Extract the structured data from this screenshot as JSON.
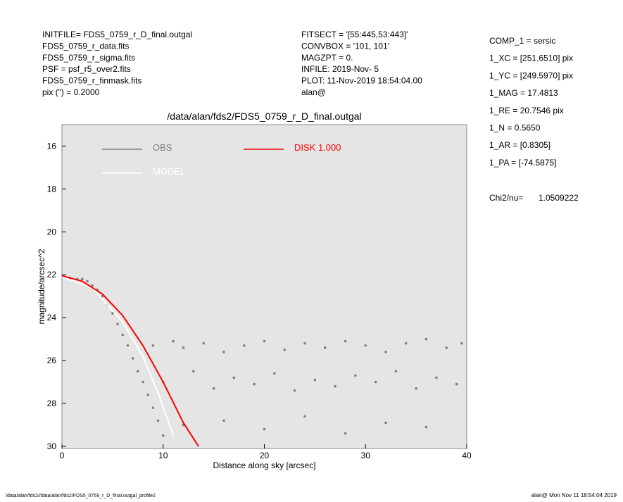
{
  "header": {
    "left": [
      "INITFILE= FDS5_0759_r_D_final.outgal",
      "FDS5_0759_r_data.fits",
      "FDS5_0759_r_sigma.fits",
      "PSF    = psf_r5_over2.fits",
      "FDS5_0759_r_finmask.fits",
      "pix (\") =  0.2000"
    ],
    "middle": [
      "FITSECT = '[55:445,53:443]'",
      "CONVBOX = '101, 101'",
      "MAGZPT =                0.",
      "INFILE: 2019-Nov- 5",
      "PLOT: 11-Nov-2019 18:54:04.00",
      "alan@"
    ],
    "right": [
      "COMP_1  = sersic",
      "1_XC    = [251.6510] pix",
      "1_YC    = [249.5970] pix",
      "1_MAG   = 17.4813",
      "1_RE    = 20.7546 pix",
      "1_N     = 0.5650",
      "1_AR    = [0.8305]",
      "1_PA    = [-74.5875]"
    ],
    "chi2_label": "Chi2/nu=",
    "chi2_value": "1.0509222"
  },
  "footer": {
    "left": "/data/alan/fds2//data/alan/fds2/FDS5_0759_r_D_final.outgal_profile2",
    "right": "alan@  Mon Nov 11 18:54:04 2019"
  },
  "chart_data": {
    "type": "scatter",
    "title": "/data/alan/fds2/FDS5_0759_r_D_final.outgal",
    "xlabel": "Distance along sky [arcsec]",
    "ylabel": "magnitude/arcsec^2",
    "xlim": [
      0,
      40
    ],
    "ylim": [
      30.1,
      15
    ],
    "xticks": [
      0,
      10,
      20,
      30,
      40
    ],
    "yticks": [
      16,
      18,
      20,
      22,
      24,
      26,
      28,
      30
    ],
    "grid": false,
    "background": "#e5e5e5",
    "series": [
      {
        "name": "OBS",
        "color": "#808080",
        "mode": "points",
        "x": [
          0.3,
          0.8,
          1.5,
          2.0,
          2.5,
          3.0,
          3.5,
          4.0,
          4.5,
          5.0,
          5.5,
          6.0,
          6.5,
          7.0,
          7.5,
          8.0,
          8.5,
          9.0,
          9.5,
          10.0,
          9,
          11,
          12,
          14,
          16,
          18,
          20,
          22,
          24,
          26,
          28,
          30,
          32,
          34,
          36,
          38,
          39.5,
          10,
          13,
          15,
          17,
          19,
          21,
          23,
          25,
          27,
          29,
          31,
          33,
          35,
          37,
          39,
          12,
          16,
          20,
          24,
          28,
          32,
          36
        ],
        "values": [
          22.1,
          22.15,
          22.2,
          22.2,
          22.3,
          22.5,
          22.7,
          23.0,
          23.4,
          23.8,
          24.3,
          24.8,
          25.3,
          25.9,
          26.5,
          27.0,
          27.6,
          28.2,
          28.8,
          29.5,
          25.3,
          25.1,
          25.4,
          25.2,
          25.6,
          25.3,
          25.1,
          25.5,
          25.2,
          25.4,
          25.1,
          25.3,
          25.6,
          25.2,
          25.0,
          25.4,
          25.2,
          27.0,
          26.5,
          27.3,
          26.8,
          27.1,
          26.6,
          27.4,
          26.9,
          27.2,
          26.7,
          27.0,
          26.5,
          27.3,
          26.8,
          27.1,
          29.0,
          28.8,
          29.2,
          28.6,
          29.4,
          28.9,
          29.1
        ]
      },
      {
        "name": "MODEL",
        "color": "#ffffff",
        "mode": "line",
        "x": [
          0,
          3,
          6,
          8,
          9.5,
          11
        ],
        "values": [
          22.1,
          22.6,
          24.2,
          25.8,
          27.5,
          29.5
        ]
      },
      {
        "name": "DISK  1.000",
        "color": "#ff0000",
        "mode": "line",
        "x": [
          0,
          2,
          4,
          6,
          8,
          10,
          12,
          13.5
        ],
        "values": [
          22.05,
          22.3,
          22.9,
          23.9,
          25.3,
          27.0,
          28.9,
          30.0
        ]
      }
    ]
  }
}
